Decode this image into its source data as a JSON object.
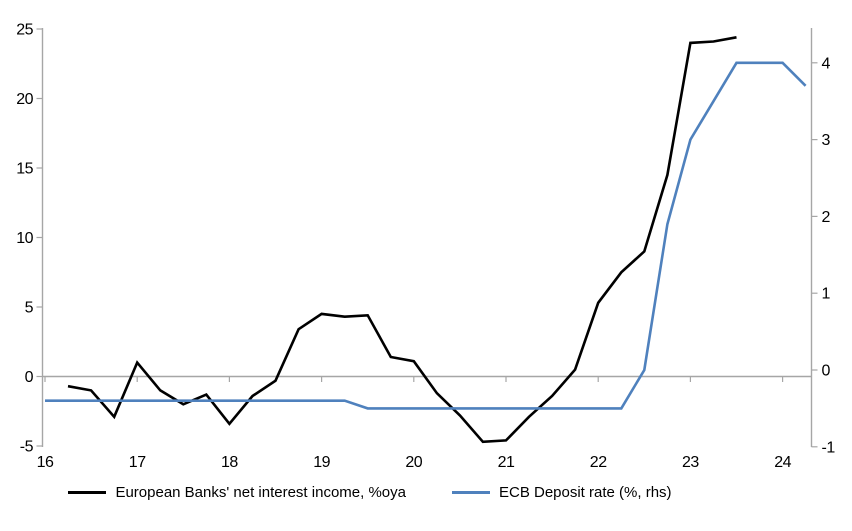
{
  "chart_data": {
    "type": "line",
    "title": "",
    "legend_position": "bottom",
    "grid": false,
    "zero_line": true,
    "axis_color": "#A6A6A6",
    "x_axis": {
      "ticks": [
        16,
        17,
        18,
        19,
        20,
        21,
        22,
        23,
        24
      ],
      "range": [
        16,
        24.33
      ]
    },
    "left_axis": {
      "ticks": [
        25,
        20,
        15,
        10,
        5,
        0,
        -5
      ],
      "range": [
        -5,
        25.1
      ]
    },
    "right_axis": {
      "ticks": [
        4,
        3,
        2,
        1,
        0,
        -1
      ],
      "range": [
        -1.0,
        4.45
      ]
    },
    "series": [
      {
        "name": "European Banks' net interest income, %oya",
        "axis": "left",
        "color": "#000000",
        "x": [
          16.25,
          16.5,
          16.75,
          17.0,
          17.25,
          17.5,
          17.75,
          18.0,
          18.25,
          18.5,
          18.75,
          19.0,
          19.25,
          19.5,
          19.75,
          20.0,
          20.25,
          20.5,
          20.75,
          21.0,
          21.25,
          21.5,
          21.75,
          22.0,
          22.25,
          22.5,
          22.75,
          23.0,
          23.25,
          23.5
        ],
        "values": [
          -0.7,
          -1.0,
          -2.9,
          1.0,
          -1.0,
          -2.0,
          -1.3,
          -3.4,
          -1.4,
          -0.3,
          3.4,
          4.5,
          4.3,
          4.4,
          1.4,
          1.1,
          -1.2,
          -2.8,
          -4.7,
          -4.6,
          -2.9,
          -1.4,
          0.5,
          5.3,
          7.5,
          9.0,
          14.5,
          24.0,
          24.1,
          24.4
        ]
      },
      {
        "name": "ECB Deposit rate (%, rhs)",
        "axis": "right",
        "color": "#4F81BD",
        "x": [
          16.0,
          16.25,
          16.5,
          16.75,
          17.0,
          17.25,
          17.5,
          17.75,
          18.0,
          18.25,
          18.5,
          18.75,
          19.0,
          19.25,
          19.5,
          19.75,
          20.0,
          20.25,
          20.5,
          20.75,
          21.0,
          21.25,
          21.5,
          21.75,
          22.0,
          22.25,
          22.5,
          22.75,
          23.0,
          23.25,
          23.5,
          23.75,
          24.0,
          24.25
        ],
        "values": [
          -0.4,
          -0.4,
          -0.4,
          -0.4,
          -0.4,
          -0.4,
          -0.4,
          -0.4,
          -0.4,
          -0.4,
          -0.4,
          -0.4,
          -0.4,
          -0.4,
          -0.5,
          -0.5,
          -0.5,
          -0.5,
          -0.5,
          -0.5,
          -0.5,
          -0.5,
          -0.5,
          -0.5,
          -0.5,
          -0.5,
          0.0,
          1.9,
          3.0,
          3.5,
          4.0,
          4.0,
          4.0,
          3.7
        ]
      }
    ]
  }
}
